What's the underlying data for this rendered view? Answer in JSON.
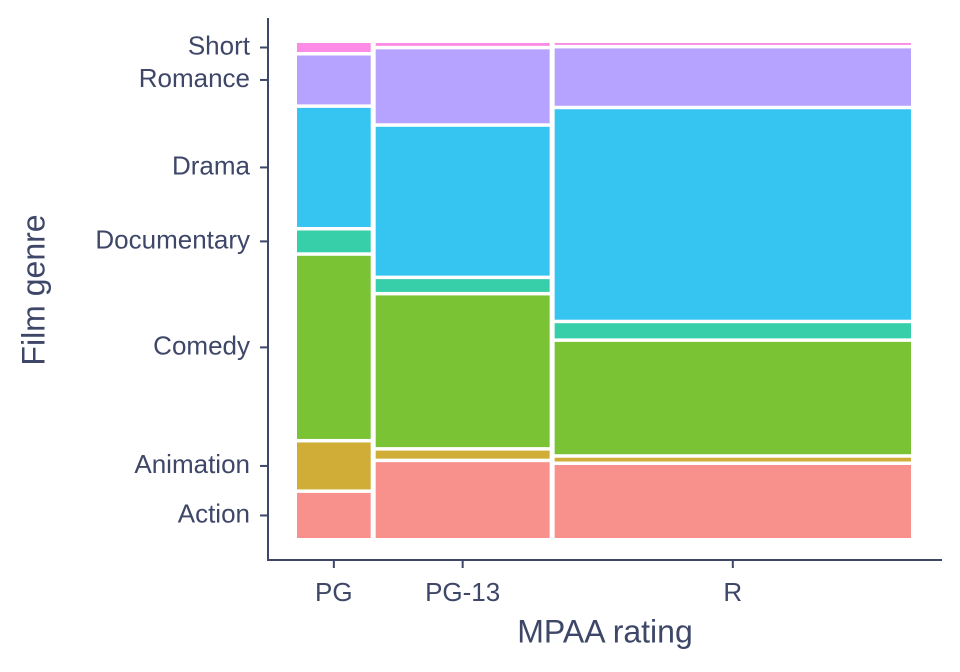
{
  "chart_data": {
    "type": "mosaic",
    "x_label": "MPAA rating",
    "y_label": "Film genre",
    "categories": [
      "PG",
      "PG-13",
      "R"
    ],
    "column_shares": [
      12.2,
      28.8,
      59.0
    ],
    "series": [
      {
        "name": "Action",
        "color": "#f8918b",
        "values": [
          9.5,
          16.0,
          15.4
        ]
      },
      {
        "name": "Animation",
        "color": "#d0ad36",
        "values": [
          9.9,
          1.7,
          0.8
        ]
      },
      {
        "name": "Comedy",
        "color": "#79c334",
        "values": [
          38.6,
          32.0,
          23.7
        ]
      },
      {
        "name": "Documentary",
        "color": "#36cfaa",
        "values": [
          4.6,
          2.7,
          3.2
        ]
      },
      {
        "name": "Drama",
        "color": "#36c4f0",
        "values": [
          25.1,
          31.4,
          44.4
        ]
      },
      {
        "name": "Romance",
        "color": "#b6a2ff",
        "values": [
          10.3,
          15.6,
          12.1
        ]
      },
      {
        "name": "Short",
        "color": "#fb8be4",
        "values": [
          1.9,
          0.6,
          0.4
        ]
      }
    ]
  }
}
